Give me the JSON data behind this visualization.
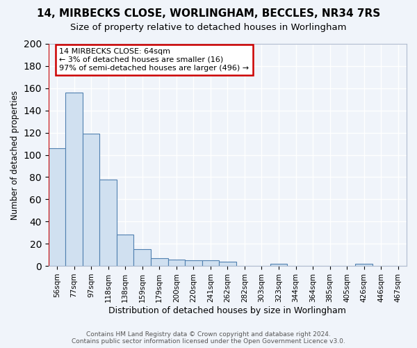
{
  "title": "14, MIRBECKS CLOSE, WORLINGHAM, BECCLES, NR34 7RS",
  "subtitle": "Size of property relative to detached houses in Worlingham",
  "xlabel": "Distribution of detached houses by size in Worlingham",
  "ylabel": "Number of detached properties",
  "categories": [
    "56sqm",
    "77sqm",
    "97sqm",
    "118sqm",
    "138sqm",
    "159sqm",
    "179sqm",
    "200sqm",
    "220sqm",
    "241sqm",
    "262sqm",
    "282sqm",
    "303sqm",
    "323sqm",
    "344sqm",
    "364sqm",
    "385sqm",
    "405sqm",
    "426sqm",
    "446sqm",
    "467sqm"
  ],
  "values": [
    106,
    156,
    119,
    78,
    28,
    15,
    7,
    6,
    5,
    5,
    4,
    0,
    0,
    2,
    0,
    0,
    0,
    0,
    2,
    0,
    0
  ],
  "bar_color": "#d0e0f0",
  "bar_edge_color": "#5080b0",
  "annotation_title": "14 MIRBECKS CLOSE: 64sqm",
  "annotation_line1": "← 3% of detached houses are smaller (16)",
  "annotation_line2": "97% of semi-detached houses are larger (496) →",
  "annotation_box_color": "#ffffff",
  "annotation_box_edge": "#cc0000",
  "red_line_color": "#cc0000",
  "footer1": "Contains HM Land Registry data © Crown copyright and database right 2024.",
  "footer2": "Contains public sector information licensed under the Open Government Licence v3.0.",
  "ylim": [
    0,
    200
  ],
  "yticks": [
    0,
    20,
    40,
    60,
    80,
    100,
    120,
    140,
    160,
    180,
    200
  ],
  "bg_color": "#f0f4fa",
  "plot_bg_color": "#f0f4fa",
  "grid_color": "#ffffff",
  "title_fontsize": 11,
  "subtitle_fontsize": 9.5
}
